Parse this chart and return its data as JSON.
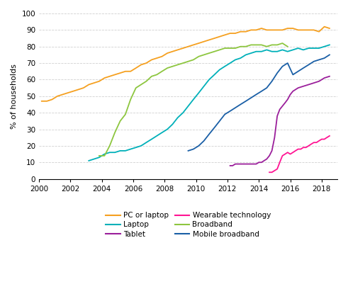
{
  "title": "",
  "ylabel": "% of households",
  "ylim": [
    0,
    100
  ],
  "xlim": [
    2000,
    2019
  ],
  "yticks": [
    0,
    10,
    20,
    30,
    40,
    50,
    60,
    70,
    80,
    90,
    100
  ],
  "xticks": [
    2000,
    2002,
    2004,
    2006,
    2008,
    2010,
    2012,
    2014,
    2016,
    2018
  ],
  "background_color": "#ffffff",
  "grid_color": "#d0d0d0",
  "series": {
    "PC or laptop": {
      "color": "#f5a020",
      "x": [
        2000.17,
        2000.5,
        2000.83,
        2001.17,
        2001.5,
        2001.83,
        2002.17,
        2002.5,
        2002.83,
        2003.17,
        2003.5,
        2003.83,
        2004.17,
        2004.5,
        2004.83,
        2005.17,
        2005.5,
        2005.83,
        2006.17,
        2006.5,
        2006.83,
        2007.17,
        2007.5,
        2007.83,
        2008.17,
        2008.5,
        2008.83,
        2009.17,
        2009.5,
        2009.83,
        2010.17,
        2010.5,
        2010.83,
        2011.17,
        2011.5,
        2011.83,
        2012.17,
        2012.5,
        2012.83,
        2013.17,
        2013.5,
        2013.83,
        2014.17,
        2014.5,
        2014.83,
        2015.17,
        2015.5,
        2015.83,
        2016.17,
        2016.5,
        2016.83,
        2017.17,
        2017.5,
        2017.83,
        2018.17,
        2018.5
      ],
      "y": [
        47,
        47,
        48,
        50,
        51,
        52,
        53,
        54,
        55,
        57,
        58,
        59,
        61,
        62,
        63,
        64,
        65,
        65,
        67,
        69,
        70,
        72,
        73,
        74,
        76,
        77,
        78,
        79,
        80,
        81,
        82,
        83,
        84,
        85,
        86,
        87,
        88,
        88,
        89,
        89,
        90,
        90,
        91,
        90,
        90,
        90,
        90,
        91,
        91,
        90,
        90,
        90,
        90,
        89,
        92,
        91
      ]
    },
    "Laptop": {
      "color": "#00b0b9",
      "x": [
        2003.17,
        2003.5,
        2003.83,
        2004.17,
        2004.5,
        2004.83,
        2005.17,
        2005.5,
        2005.83,
        2006.17,
        2006.5,
        2006.83,
        2007.17,
        2007.5,
        2007.83,
        2008.17,
        2008.5,
        2008.83,
        2009.17,
        2009.5,
        2009.83,
        2010.17,
        2010.5,
        2010.83,
        2011.17,
        2011.5,
        2011.83,
        2012.17,
        2012.5,
        2012.83,
        2013.17,
        2013.5,
        2013.83,
        2014.17,
        2014.5,
        2014.83,
        2015.17,
        2015.5,
        2015.83,
        2016.17,
        2016.5,
        2016.83,
        2017.17,
        2017.5,
        2017.83,
        2018.17,
        2018.5
      ],
      "y": [
        11,
        12,
        13,
        15,
        16,
        16,
        17,
        17,
        18,
        19,
        20,
        22,
        24,
        26,
        28,
        30,
        33,
        37,
        40,
        44,
        48,
        52,
        56,
        60,
        63,
        66,
        68,
        70,
        72,
        73,
        75,
        76,
        77,
        77,
        78,
        77,
        77,
        78,
        77,
        78,
        79,
        78,
        79,
        79,
        79,
        80,
        81
      ]
    },
    "Tablet": {
      "color": "#9b1f9b",
      "x": [
        2012.17,
        2012.33,
        2012.5,
        2012.67,
        2012.83,
        2013.0,
        2013.17,
        2013.33,
        2013.5,
        2013.67,
        2013.83,
        2014.0,
        2014.17,
        2014.33,
        2014.5,
        2014.67,
        2014.83,
        2015.0,
        2015.17,
        2015.33,
        2015.5,
        2015.67,
        2015.83,
        2016.0,
        2016.17,
        2016.5,
        2016.83,
        2017.17,
        2017.5,
        2017.83,
        2018.17,
        2018.5
      ],
      "y": [
        8,
        8,
        9,
        9,
        9,
        9,
        9,
        9,
        9,
        9,
        9,
        10,
        10,
        11,
        12,
        14,
        17,
        25,
        38,
        42,
        44,
        46,
        48,
        51,
        53,
        55,
        56,
        57,
        58,
        59,
        61,
        62
      ]
    },
    "Wearable technology": {
      "color": "#ff1493",
      "x": [
        2014.67,
        2014.83,
        2015.0,
        2015.17,
        2015.33,
        2015.5,
        2015.67,
        2015.83,
        2016.0,
        2016.17,
        2016.33,
        2016.5,
        2016.67,
        2016.83,
        2017.0,
        2017.17,
        2017.33,
        2017.5,
        2017.67,
        2017.83,
        2018.0,
        2018.17,
        2018.33,
        2018.5
      ],
      "y": [
        4,
        4,
        5,
        6,
        10,
        14,
        15,
        16,
        15,
        16,
        17,
        18,
        18,
        19,
        19,
        20,
        21,
        22,
        22,
        23,
        24,
        24,
        25,
        26
      ]
    },
    "Broadband": {
      "color": "#8dc63f",
      "x": [
        2003.83,
        2004.0,
        2004.17,
        2004.5,
        2004.83,
        2005.17,
        2005.5,
        2005.83,
        2006.17,
        2006.5,
        2006.83,
        2007.17,
        2007.5,
        2007.83,
        2008.17,
        2008.5,
        2008.83,
        2009.17,
        2009.5,
        2009.83,
        2010.17,
        2010.5,
        2010.83,
        2011.17,
        2011.5,
        2011.83,
        2012.17,
        2012.5,
        2012.83,
        2013.17,
        2013.5,
        2013.83,
        2014.17,
        2014.5,
        2014.83,
        2015.17,
        2015.5,
        2015.83
      ],
      "y": [
        14,
        14,
        14,
        20,
        28,
        35,
        39,
        48,
        55,
        57,
        59,
        62,
        63,
        65,
        67,
        68,
        69,
        70,
        71,
        72,
        74,
        75,
        76,
        77,
        78,
        79,
        79,
        79,
        80,
        80,
        81,
        81,
        81,
        80,
        81,
        81,
        82,
        80
      ]
    },
    "Mobile broadband": {
      "color": "#1a5fa6",
      "x": [
        2009.5,
        2009.83,
        2010.17,
        2010.5,
        2010.83,
        2011.17,
        2011.5,
        2011.83,
        2012.17,
        2012.5,
        2012.83,
        2013.17,
        2013.5,
        2013.83,
        2014.17,
        2014.5,
        2014.83,
        2015.17,
        2015.5,
        2015.83,
        2016.17,
        2016.5,
        2016.83,
        2017.17,
        2017.5,
        2017.83,
        2018.17,
        2018.5
      ],
      "y": [
        17,
        18,
        20,
        23,
        27,
        31,
        35,
        39,
        41,
        43,
        45,
        47,
        49,
        51,
        53,
        55,
        59,
        64,
        68,
        70,
        63,
        65,
        67,
        69,
        71,
        72,
        73,
        75
      ]
    }
  },
  "legend_left": [
    {
      "label": "PC or laptop",
      "color": "#f5a020"
    },
    {
      "label": "Tablet",
      "color": "#9b1f9b"
    },
    {
      "label": "Broadband",
      "color": "#8dc63f"
    }
  ],
  "legend_right": [
    {
      "label": "Laptop",
      "color": "#00b0b9"
    },
    {
      "label": "Wearable technology",
      "color": "#ff1493"
    },
    {
      "label": "Mobile broadband",
      "color": "#1a5fa6"
    }
  ]
}
